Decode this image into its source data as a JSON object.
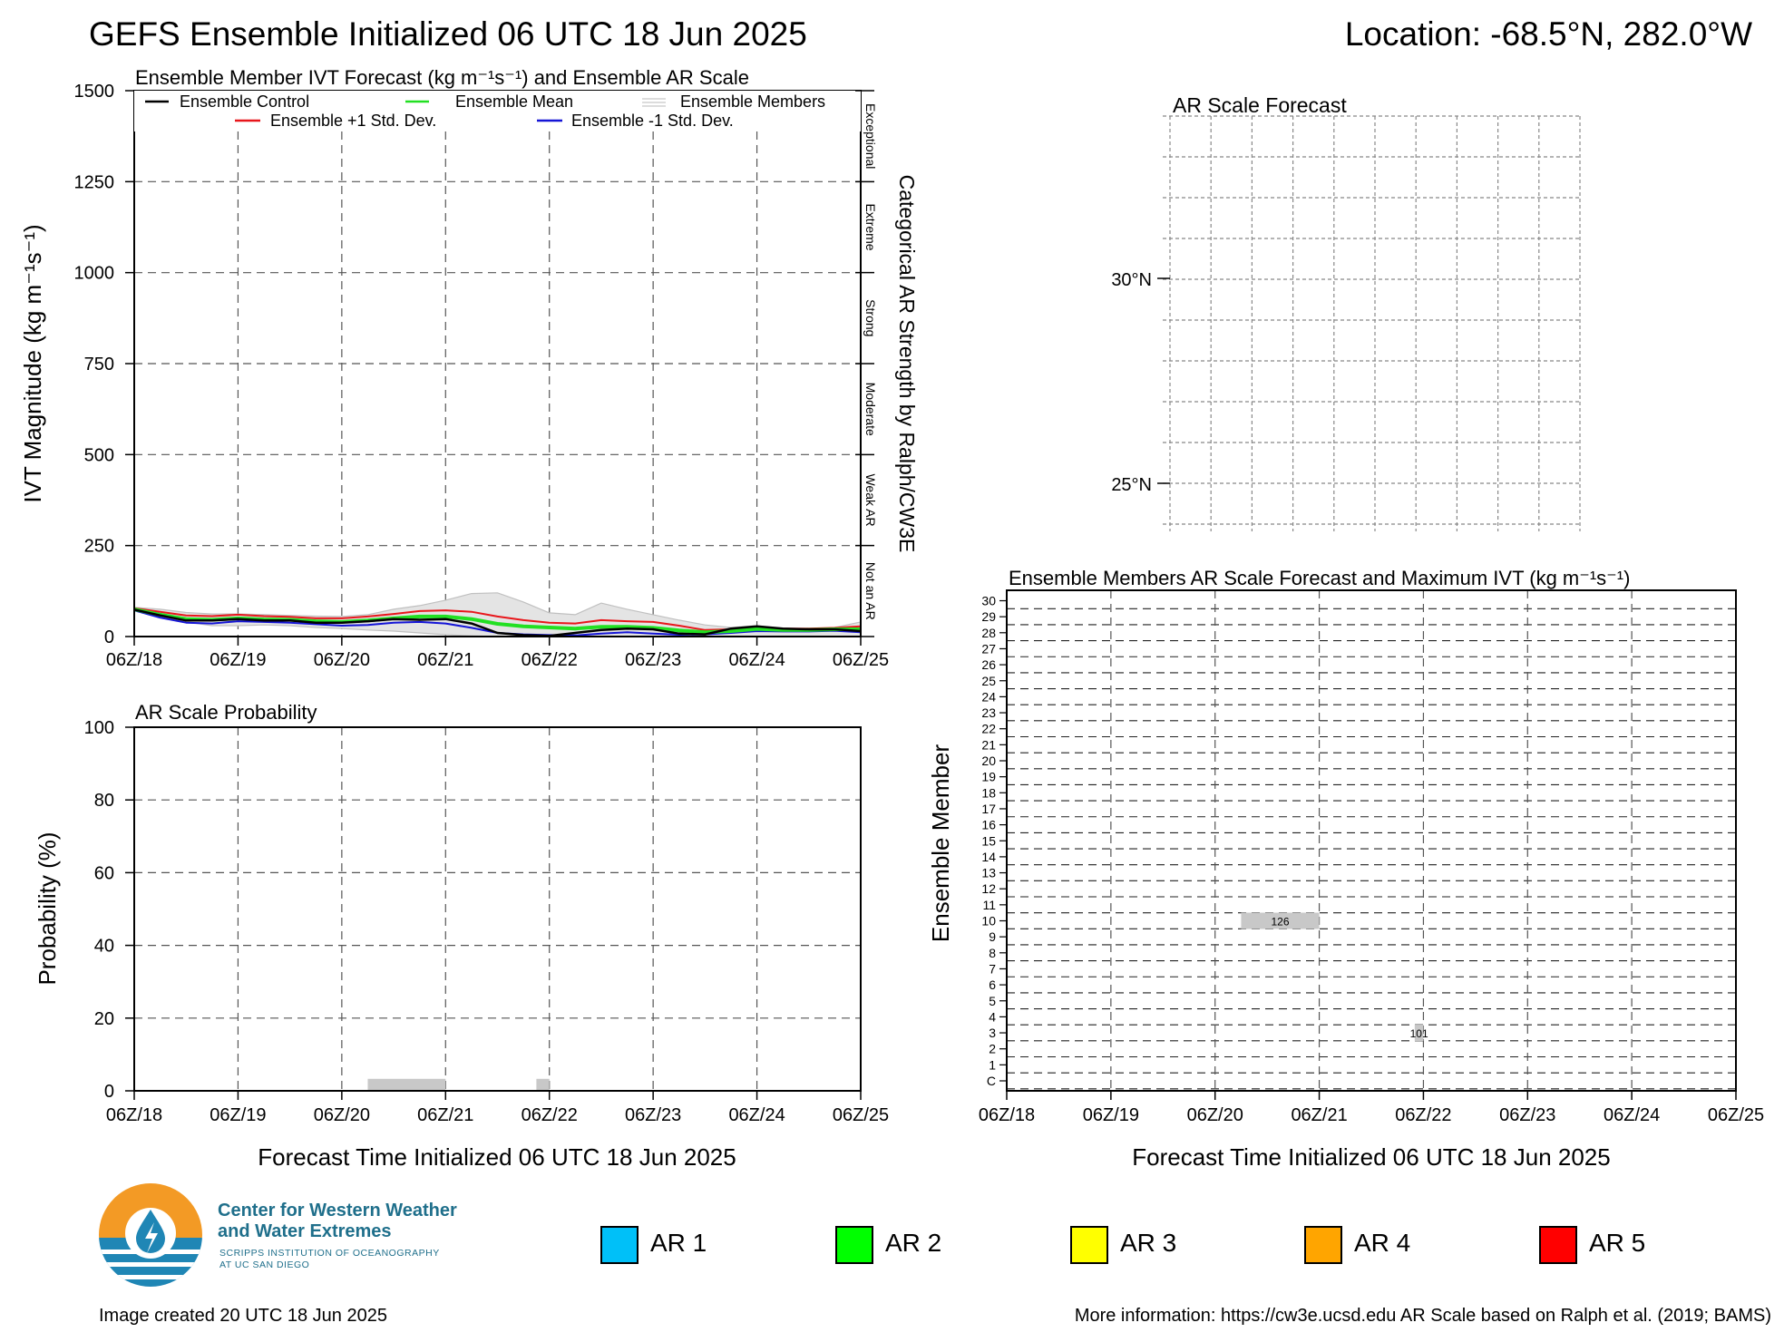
{
  "header": {
    "title": "GEFS Ensemble Initialized 06 UTC 18 Jun 2025",
    "location": "Location: -68.5°N, 282.0°W"
  },
  "time_ticks": [
    "06Z/18",
    "06Z/19",
    "06Z/20",
    "06Z/21",
    "06Z/22",
    "06Z/23",
    "06Z/24",
    "06Z/25"
  ],
  "chart_data": [
    {
      "type": "line",
      "title": "Ensemble Member IVT Forecast (kg m⁻¹s⁻¹) and Ensemble AR Scale",
      "ylabel": "IVT Magnitude (kg m⁻¹s⁻¹)",
      "right_label": "Categorical AR Strength by Ralph/CW3E",
      "categories_right": [
        "Not an AR",
        "Weak AR",
        "Moderate",
        "Strong",
        "Extreme",
        "Exceptional"
      ],
      "ylim": [
        0,
        1500
      ],
      "yticks": [
        0,
        250,
        500,
        750,
        1000,
        1250,
        1500
      ],
      "xlim_hours": [
        0,
        168
      ],
      "legend": {
        "control": "Ensemble Control",
        "mean": "Ensemble Mean",
        "members": "Ensemble Members",
        "plus": "Ensemble +1 Std. Dev.",
        "minus": "Ensemble -1 Std. Dev."
      },
      "colors": {
        "control": "#000000",
        "mean": "#22e022",
        "members": "#c8c8c8",
        "plus": "#e8161b",
        "minus": "#1515d6"
      },
      "x_hours": [
        0,
        6,
        12,
        18,
        24,
        30,
        36,
        42,
        48,
        54,
        60,
        66,
        72,
        78,
        84,
        90,
        96,
        102,
        108,
        114,
        120,
        126,
        132,
        138,
        144,
        150,
        156,
        162,
        168
      ],
      "series": [
        {
          "key": "members_upper",
          "values": [
            80,
            75,
            66,
            62,
            62,
            60,
            58,
            56,
            55,
            60,
            75,
            85,
            100,
            118,
            120,
            95,
            65,
            60,
            92,
            75,
            60,
            45,
            32,
            25,
            30,
            20,
            18,
            25,
            40
          ]
        },
        {
          "key": "members_lower",
          "values": [
            72,
            55,
            40,
            30,
            30,
            32,
            30,
            25,
            22,
            18,
            15,
            10,
            5,
            2,
            0,
            0,
            0,
            0,
            0,
            0,
            0,
            0,
            0,
            0,
            0,
            0,
            0,
            0,
            0
          ]
        },
        {
          "key": "plus",
          "values": [
            78,
            68,
            58,
            56,
            60,
            56,
            54,
            50,
            50,
            55,
            62,
            70,
            72,
            68,
            55,
            45,
            38,
            36,
            45,
            42,
            40,
            30,
            18,
            20,
            25,
            22,
            22,
            24,
            28
          ]
        },
        {
          "key": "mean",
          "values": [
            75,
            60,
            48,
            46,
            50,
            47,
            46,
            42,
            40,
            44,
            50,
            55,
            55,
            48,
            35,
            28,
            25,
            22,
            27,
            27,
            24,
            17,
            12,
            15,
            21,
            18,
            18,
            20,
            20
          ]
        },
        {
          "key": "minus",
          "values": [
            72,
            52,
            38,
            36,
            42,
            40,
            38,
            34,
            30,
            32,
            38,
            40,
            36,
            24,
            10,
            6,
            4,
            3,
            8,
            12,
            8,
            5,
            6,
            10,
            15,
            14,
            14,
            16,
            12
          ]
        },
        {
          "key": "control",
          "values": [
            74,
            58,
            44,
            44,
            48,
            44,
            44,
            38,
            38,
            42,
            48,
            46,
            48,
            36,
            10,
            4,
            2,
            10,
            18,
            22,
            20,
            8,
            6,
            22,
            28,
            22,
            20,
            20,
            15
          ]
        }
      ]
    },
    {
      "type": "bar",
      "title": "AR Scale Probability",
      "ylabel": "Probability (%)",
      "ylim": [
        0,
        100
      ],
      "yticks": [
        0,
        20,
        40,
        60,
        80,
        100
      ],
      "bars": [
        {
          "start_hour": 54,
          "end_hour": 72,
          "value": 3.3,
          "color": "#c8c8c8"
        },
        {
          "start_hour": 93,
          "end_hour": 96,
          "value": 3.3,
          "color": "#c8c8c8"
        }
      ]
    },
    {
      "type": "table",
      "title": "Ensemble Members AR Scale Forecast and Maximum IVT (kg m⁻¹s⁻¹)",
      "ylabel": "Ensemble Member",
      "xlabel": "Forecast Time Initialized 06 UTC 18 Jun 2025",
      "members": [
        "C",
        "1",
        "2",
        "3",
        "4",
        "5",
        "6",
        "7",
        "8",
        "9",
        "10",
        "11",
        "12",
        "13",
        "14",
        "15",
        "16",
        "17",
        "18",
        "19",
        "20",
        "21",
        "22",
        "23",
        "24",
        "25",
        "26",
        "27",
        "28",
        "29",
        "30"
      ],
      "events": [
        {
          "member": "10",
          "start_hour": 54,
          "end_hour": 72,
          "label": "126"
        },
        {
          "member": "3",
          "start_hour": 94,
          "end_hour": 96,
          "label": "101"
        }
      ]
    }
  ],
  "map_panel": {
    "title": "AR Scale Forecast",
    "lat_labels": [
      "30°N",
      "25°N"
    ]
  },
  "left_xlabel": "Forecast Time Initialized 06 UTC 18 Jun 2025",
  "ar_legend": [
    {
      "label": "AR 1",
      "color": "#00c0f8"
    },
    {
      "label": "AR 2",
      "color": "#00ff00"
    },
    {
      "label": "AR 3",
      "color": "#ffff00"
    },
    {
      "label": "AR 4",
      "color": "#ffa500"
    },
    {
      "label": "AR 5",
      "color": "#ff0000"
    }
  ],
  "logo": {
    "line1": "Center for Western Weather",
    "line2": "and Water Extremes",
    "sub1": "SCRIPPS INSTITUTION OF OCEANOGRAPHY",
    "sub2": "AT UC SAN DIEGO"
  },
  "footer": {
    "created": "Image created 20 UTC 18 Jun 2025",
    "info": "More information: https://cw3e.ucsd.edu AR Scale based on Ralph et al. (2019; BAMS)"
  }
}
